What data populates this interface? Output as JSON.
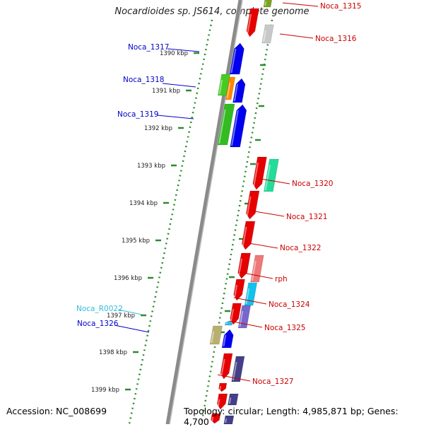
{
  "title": "Nocardioides sp. JS614, complete genome",
  "footer": {
    "accession": "Accession: NC_008699",
    "summary": "Topology: circular; Length: 4,985,871 bp; Genes: 4,700"
  },
  "colors": {
    "backbone": "#8a8a8a",
    "tick": "#2e8b2e",
    "forward_label": "#0000cc",
    "reverse_label": "#cc0000",
    "rna_label": "#33bbdd"
  },
  "kbp_ticks": [
    "1390 kbp",
    "1391 kbp",
    "1392 kbp",
    "1393 kbp",
    "1394 kbp",
    "1395 kbp",
    "1396 kbp",
    "1397 kbp",
    "1398 kbp",
    "1399 kbp"
  ],
  "gene_labels": [
    {
      "name": "Noca_1315",
      "strand": "reverse"
    },
    {
      "name": "Noca_1316",
      "strand": "reverse"
    },
    {
      "name": "Noca_1317",
      "strand": "forward"
    },
    {
      "name": "Noca_1318",
      "strand": "forward"
    },
    {
      "name": "Noca_1319",
      "strand": "forward"
    },
    {
      "name": "Noca_1320",
      "strand": "reverse"
    },
    {
      "name": "Noca_1321",
      "strand": "reverse"
    },
    {
      "name": "Noca_1322",
      "strand": "reverse"
    },
    {
      "name": "rph",
      "strand": "reverse"
    },
    {
      "name": "Noca_1324",
      "strand": "reverse"
    },
    {
      "name": "Noca_1325",
      "strand": "reverse"
    },
    {
      "name": "Noca_R0022",
      "strand": "rna"
    },
    {
      "name": "Noca_1326",
      "strand": "forward"
    },
    {
      "name": "Noca_1327",
      "strand": "reverse"
    }
  ]
}
